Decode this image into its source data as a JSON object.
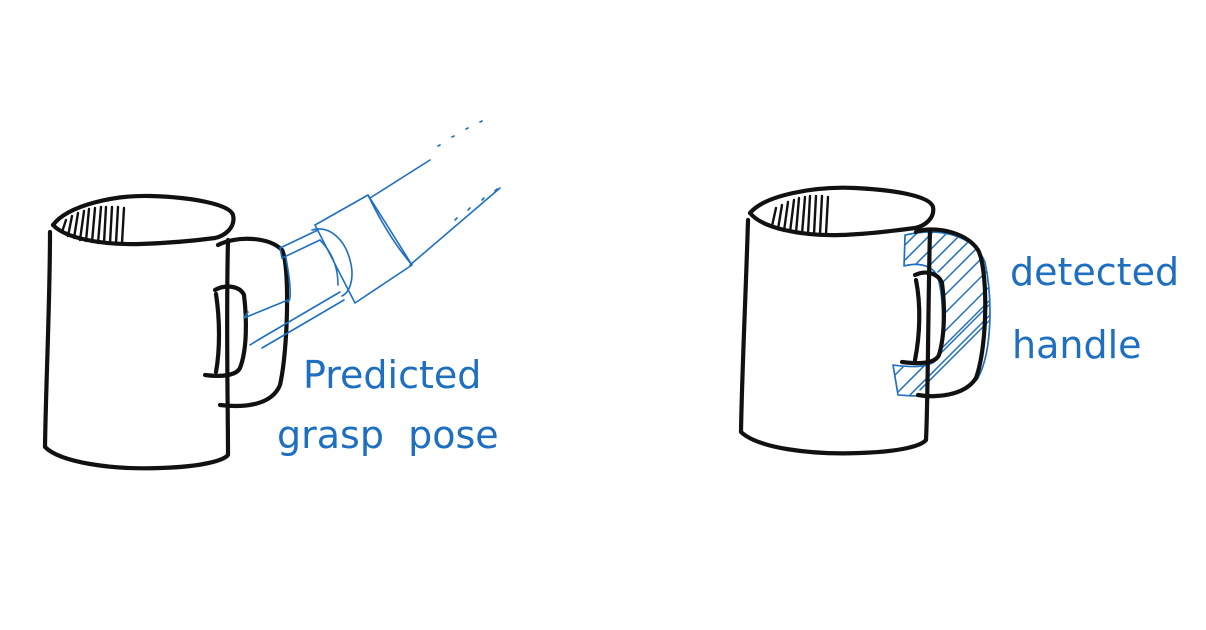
{
  "colors": {
    "ink": "#111111",
    "annotation": "#1f6fc0",
    "background": "#ffffff"
  },
  "left_panel": {
    "label_line1": "Predicted",
    "label_line2": "grasp  pose"
  },
  "right_panel": {
    "label_line1": "detected",
    "label_line2": "handle"
  }
}
